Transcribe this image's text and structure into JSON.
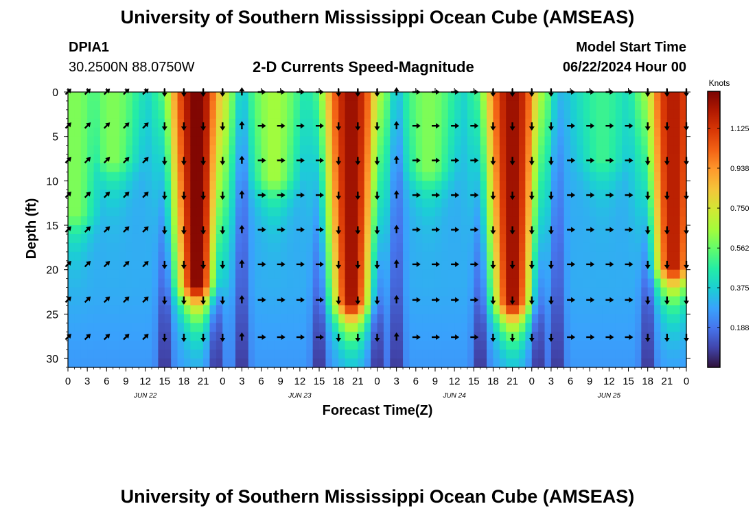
{
  "header": {
    "title_top": "University of Southern Mississippi Ocean Cube (AMSEAS)",
    "title_bottom": "University of Southern Mississippi Ocean Cube (AMSEAS)",
    "station_id": "DPIA1",
    "station_coords": "30.2500N  88.0750W",
    "plot_title": "2-D Currents Speed-Magnitude",
    "start_label": "Model Start Time",
    "start_value": "06/22/2024 Hour 00"
  },
  "chart_data": {
    "type": "heatmap",
    "title": "2-D Currents Speed-Magnitude",
    "xlabel": "Forecast Time(Z)",
    "ylabel": "Depth (ft)",
    "x_range_hours": [
      0,
      96
    ],
    "ylim": [
      0,
      31
    ],
    "y_inverted": true,
    "x_tick_hours": [
      0,
      3,
      6,
      9,
      12,
      15,
      18,
      21,
      24,
      27,
      30,
      33,
      36,
      39,
      42,
      45,
      48,
      51,
      54,
      57,
      60,
      63,
      66,
      69,
      72,
      75,
      78,
      81,
      84,
      87,
      90,
      93,
      96
    ],
    "x_tick_labels": [
      "0",
      "3",
      "6",
      "9",
      "12",
      "15",
      "18",
      "21",
      "0",
      "3",
      "6",
      "9",
      "12",
      "15",
      "18",
      "21",
      "0",
      "3",
      "6",
      "9",
      "12",
      "15",
      "18",
      "21",
      "0",
      "3",
      "6",
      "9",
      "12",
      "15",
      "18",
      "21",
      "0"
    ],
    "date_labels": [
      {
        "text": "JUN 22",
        "hour": 12
      },
      {
        "text": "JUN 23",
        "hour": 36
      },
      {
        "text": "JUN 24",
        "hour": 60
      },
      {
        "text": "JUN 25",
        "hour": 84
      }
    ],
    "y_ticks": [
      0,
      5,
      10,
      15,
      20,
      25,
      30
    ],
    "y_tick_labels": [
      "0",
      "5",
      "10",
      "15",
      "20",
      "25",
      "30"
    ],
    "colorbar": {
      "label": "Knots",
      "range": [
        0,
        1.3
      ],
      "tick_values": [
        0.188,
        0.375,
        0.562,
        0.75,
        0.938,
        1.125
      ],
      "tick_labels": [
        "0.188",
        "0.375",
        "0.562",
        "0.750",
        "0.938",
        "1.125"
      ],
      "colors": [
        "#30123b",
        "#4145ab",
        "#4675ed",
        "#39a2fc",
        "#1bcfd4",
        "#24eca6",
        "#61fc6c",
        "#a4fc3b",
        "#d1e834",
        "#f3c63a",
        "#fe9b2d",
        "#f36315",
        "#d93806",
        "#b11901",
        "#7a0402"
      ]
    },
    "speed_peaks": [
      {
        "hour": 20,
        "depth_to_ft": 22,
        "peak_knots": 1.3
      },
      {
        "hour": 44,
        "depth_to_ft": 24,
        "peak_knots": 1.25
      },
      {
        "hour": 69,
        "depth_to_ft": 24,
        "peak_knots": 1.25
      },
      {
        "hour": 94,
        "depth_to_ft": 20,
        "peak_knots": 1.2
      },
      {
        "hour": 1,
        "depth_to_ft": 14,
        "peak_knots": 0.6
      },
      {
        "hour": 7,
        "depth_to_ft": 8,
        "peak_knots": 0.6
      },
      {
        "hour": 32,
        "depth_to_ft": 10,
        "peak_knots": 0.65
      },
      {
        "hour": 56,
        "depth_to_ft": 9,
        "peak_knots": 0.6
      },
      {
        "hour": 83,
        "depth_to_ft": 8,
        "peak_knots": 0.5
      }
    ],
    "speed_minima_hours": [
      15,
      23,
      27,
      39,
      48,
      51,
      64,
      73,
      76,
      90
    ],
    "arrow_depths_ft": [
      0,
      3.8,
      7.7,
      11.6,
      15.5,
      19.4,
      23.4,
      27.6
    ],
    "arrow_hours": [
      0,
      3,
      6,
      9,
      12,
      15,
      18,
      21,
      24,
      27,
      30,
      33,
      36,
      39,
      42,
      45,
      48,
      51,
      54,
      57,
      60,
      63,
      66,
      69,
      72,
      75,
      78,
      81,
      84,
      87,
      90,
      93,
      96
    ],
    "arrow_direction_regime": [
      {
        "from_hour": 0,
        "to_hour": 15,
        "direction": "northeast"
      },
      {
        "from_hour": 15,
        "to_hour": 26,
        "direction": "south"
      },
      {
        "from_hour": 26,
        "to_hour": 28,
        "direction": "north"
      },
      {
        "from_hour": 28,
        "to_hour": 40,
        "direction": "east"
      },
      {
        "from_hour": 40,
        "to_hour": 51,
        "direction": "south"
      },
      {
        "from_hour": 51,
        "to_hour": 53,
        "direction": "north"
      },
      {
        "from_hour": 53,
        "to_hour": 65,
        "direction": "east"
      },
      {
        "from_hour": 65,
        "to_hour": 76,
        "direction": "south"
      },
      {
        "from_hour": 76,
        "to_hour": 78,
        "direction": "southwest"
      },
      {
        "from_hour": 78,
        "to_hour": 90,
        "direction": "east"
      },
      {
        "from_hour": 90,
        "to_hour": 96,
        "direction": "south"
      }
    ]
  }
}
